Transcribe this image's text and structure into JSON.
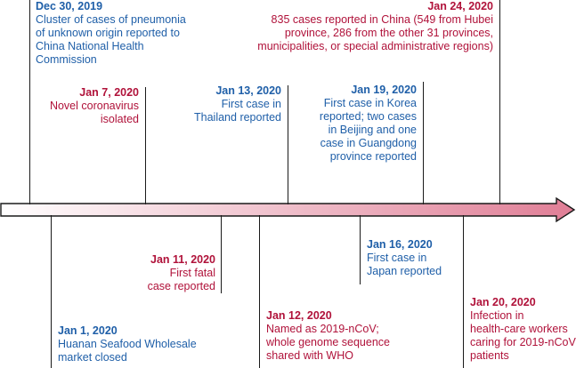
{
  "colors": {
    "blue": "#1f5fa8",
    "red": "#b0123a",
    "arrow_start": "#ffffff",
    "arrow_end": "#e07e96"
  },
  "events_above": [
    {
      "date": "Dec 30, 2019",
      "text": "Cluster of cases of pneumonia\nof unknown origin reported to\nChina National Health\nCommission",
      "color": "blue"
    },
    {
      "date": "Jan 7, 2020",
      "text": "Novel coronavirus\nisolated",
      "color": "red"
    },
    {
      "date": "Jan 13, 2020",
      "text": "First case in\nThailand reported",
      "color": "blue"
    },
    {
      "date": "Jan 19, 2020",
      "text": "First case in Korea\nreported; two cases\nin Beijing and one\ncase in Guangdong\nprovince reported",
      "color": "blue"
    },
    {
      "date": "Jan 24, 2020",
      "text": "835 cases reported in China (549 from Hubei\nprovince, 286 from the other 31 provinces,\nmunicipalities, or special administrative regions)",
      "color": "red"
    }
  ],
  "events_below": [
    {
      "date": "Jan 1, 2020",
      "text": "Huanan Seafood Wholesale\nmarket closed",
      "color": "blue"
    },
    {
      "date": "Jan 11, 2020",
      "text": "First fatal\ncase reported",
      "color": "red"
    },
    {
      "date": "Jan 12, 2020",
      "text": "Named as 2019-nCoV;\nwhole genome sequence\nshared with WHO",
      "color": "red"
    },
    {
      "date": "Jan 16, 2020",
      "text": "First case in\nJapan reported",
      "color": "blue"
    },
    {
      "date": "Jan 20, 2020",
      "text": "Infection in\nhealth-care workers\ncaring for 2019-nCoV\npatients",
      "color": "red"
    }
  ]
}
